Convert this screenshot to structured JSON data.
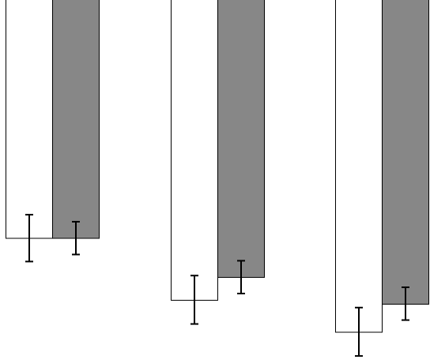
{
  "chart_data": {
    "type": "bar",
    "categories": [
      "",
      "",
      ""
    ],
    "series": [
      {
        "values": [
          300,
          379,
          420
        ],
        "error": [
          30,
          31,
          31
        ],
        "color": "#ffffff"
      },
      {
        "values": [
          300,
          350,
          384
        ],
        "error": [
          21,
          21,
          21
        ],
        "color": "#878787"
      }
    ],
    "title": "",
    "xlabel": "",
    "ylabel": "",
    "ylim": [
      0,
      460
    ],
    "y_inverted": true,
    "grid": false,
    "legend": "none",
    "bar_outline_color": "#000000",
    "error_bar_color": "#000000"
  }
}
